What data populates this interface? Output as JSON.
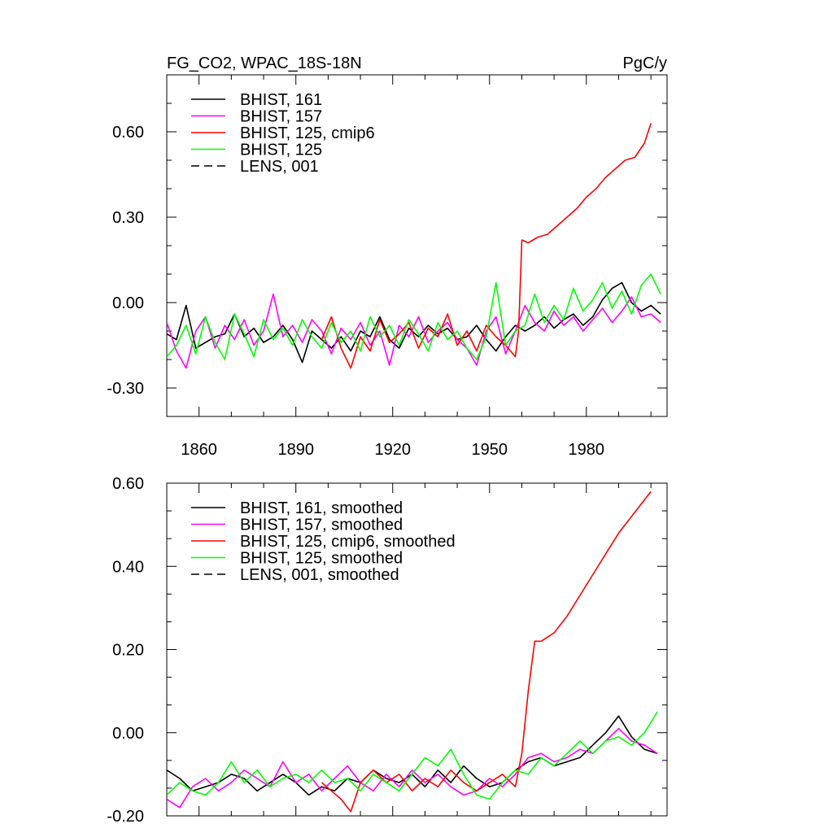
{
  "header": {
    "title": "FG_CO2, WPAC_18S-18N",
    "units": "PgC/y"
  },
  "colors": {
    "BHIST, 161": "#000000",
    "BHIST, 157": "#ff00ff",
    "BHIST, 125, cmip6": "#ff0000",
    "BHIST, 125": "#00ff00",
    "LENS, 001": "#000000"
  },
  "chart_data": [
    {
      "type": "line",
      "title": "FG_CO2, WPAC_18S-18N",
      "subtitle": "PgC/y",
      "xlim": [
        1850,
        2005
      ],
      "ylim": [
        -0.4,
        0.8
      ],
      "xticks": [
        1860,
        1890,
        1920,
        1950,
        1980
      ],
      "yticks": [
        -0.3,
        0.0,
        0.3,
        0.6
      ],
      "ytick_labels": [
        "-0.30",
        "0.00",
        "0.30",
        "0.60"
      ],
      "xtick_labels": [
        "1860",
        "1890",
        "1920",
        "1950",
        "1980"
      ],
      "legend_position": "top-left",
      "grid": false,
      "series": [
        {
          "name": "BHIST, 161",
          "color": "#000000",
          "dash": "solid",
          "x": [
            1850,
            1853,
            1856,
            1859,
            1862,
            1865,
            1868,
            1871,
            1874,
            1877,
            1880,
            1883,
            1886,
            1889,
            1892,
            1895,
            1898,
            1901,
            1904,
            1907,
            1910,
            1913,
            1916,
            1919,
            1922,
            1925,
            1928,
            1931,
            1934,
            1937,
            1940,
            1943,
            1946,
            1949,
            1952,
            1955,
            1958,
            1961,
            1964,
            1967,
            1970,
            1973,
            1976,
            1979,
            1982,
            1985,
            1988,
            1991,
            1994,
            1997,
            2000,
            2003
          ],
          "y": [
            -0.11,
            -0.13,
            -0.01,
            -0.16,
            -0.14,
            -0.12,
            -0.11,
            -0.04,
            -0.12,
            -0.09,
            -0.14,
            -0.12,
            -0.08,
            -0.13,
            -0.21,
            -0.1,
            -0.13,
            -0.16,
            -0.12,
            -0.17,
            -0.1,
            -0.12,
            -0.05,
            -0.13,
            -0.16,
            -0.09,
            -0.12,
            -0.08,
            -0.11,
            -0.09,
            -0.13,
            -0.12,
            -0.08,
            -0.13,
            -0.17,
            -0.12,
            -0.08,
            -0.1,
            -0.08,
            -0.05,
            -0.09,
            -0.06,
            -0.04,
            -0.08,
            -0.05,
            0.01,
            0.05,
            0.07,
            0.0,
            -0.03,
            -0.01,
            -0.04
          ]
        },
        {
          "name": "BHIST, 157",
          "color": "#ff00ff",
          "dash": "solid",
          "x": [
            1850,
            1853,
            1856,
            1859,
            1862,
            1865,
            1868,
            1871,
            1874,
            1877,
            1880,
            1883,
            1886,
            1889,
            1892,
            1895,
            1898,
            1901,
            1904,
            1907,
            1910,
            1913,
            1916,
            1919,
            1922,
            1925,
            1928,
            1931,
            1934,
            1937,
            1940,
            1943,
            1946,
            1949,
            1952,
            1955,
            1958,
            1961,
            1964,
            1967,
            1970,
            1973,
            1976,
            1979,
            1982,
            1985,
            1988,
            1991,
            1994,
            1997,
            2000,
            2003
          ],
          "y": [
            -0.07,
            -0.17,
            -0.23,
            -0.1,
            -0.05,
            -0.16,
            -0.08,
            -0.13,
            -0.06,
            -0.15,
            -0.1,
            0.03,
            -0.12,
            -0.08,
            -0.14,
            -0.06,
            -0.1,
            -0.18,
            -0.09,
            -0.13,
            -0.07,
            -0.15,
            -0.1,
            -0.22,
            -0.08,
            -0.12,
            -0.05,
            -0.14,
            -0.1,
            -0.07,
            -0.13,
            -0.16,
            -0.22,
            -0.1,
            -0.05,
            -0.18,
            -0.1,
            -0.01,
            -0.07,
            -0.1,
            -0.03,
            -0.08,
            -0.05,
            -0.1,
            -0.06,
            -0.02,
            -0.07,
            -0.03,
            0.02,
            -0.05,
            -0.04,
            -0.07
          ]
        },
        {
          "name": "BHIST, 125, cmip6",
          "color": "#ff0000",
          "dash": "solid",
          "x": [
            1898,
            1901,
            1904,
            1907,
            1910,
            1913,
            1916,
            1919,
            1922,
            1925,
            1928,
            1931,
            1934,
            1937,
            1940,
            1943,
            1946,
            1949,
            1952,
            1955,
            1958,
            1959,
            1960,
            1962,
            1965,
            1968,
            1971,
            1974,
            1977,
            1980,
            1983,
            1986,
            1989,
            1992,
            1995,
            1998,
            2000
          ],
          "y": [
            -0.13,
            -0.05,
            -0.16,
            -0.23,
            -0.12,
            -0.17,
            -0.06,
            -0.14,
            -0.11,
            -0.07,
            -0.16,
            -0.09,
            -0.12,
            -0.04,
            -0.15,
            -0.1,
            -0.17,
            -0.08,
            -0.12,
            -0.15,
            -0.19,
            -0.1,
            0.22,
            0.21,
            0.23,
            0.24,
            0.27,
            0.3,
            0.33,
            0.37,
            0.4,
            0.44,
            0.47,
            0.5,
            0.51,
            0.56,
            0.63
          ]
        },
        {
          "name": "BHIST, 125",
          "color": "#00ff00",
          "dash": "solid",
          "x": [
            1850,
            1853,
            1856,
            1859,
            1862,
            1865,
            1868,
            1871,
            1874,
            1877,
            1880,
            1883,
            1886,
            1889,
            1892,
            1895,
            1898,
            1901,
            1904,
            1907,
            1910,
            1913,
            1916,
            1919,
            1922,
            1925,
            1928,
            1931,
            1934,
            1937,
            1940,
            1943,
            1946,
            1949,
            1952,
            1955,
            1958,
            1961,
            1964,
            1967,
            1970,
            1973,
            1976,
            1979,
            1982,
            1985,
            1988,
            1991,
            1994,
            1997,
            2000,
            2003
          ],
          "y": [
            -0.19,
            -0.15,
            -0.08,
            -0.18,
            -0.05,
            -0.14,
            -0.2,
            -0.04,
            -0.11,
            -0.19,
            -0.06,
            -0.13,
            -0.09,
            -0.15,
            -0.06,
            -0.12,
            -0.16,
            -0.07,
            -0.14,
            -0.1,
            -0.17,
            -0.05,
            -0.12,
            -0.08,
            -0.15,
            -0.06,
            -0.11,
            -0.17,
            -0.07,
            -0.13,
            -0.1,
            -0.16,
            -0.2,
            -0.12,
            0.07,
            -0.15,
            -0.1,
            -0.08,
            0.03,
            -0.07,
            -0.01,
            -0.06,
            0.05,
            -0.03,
            0.01,
            0.07,
            -0.02,
            0.04,
            -0.04,
            0.06,
            0.1,
            0.03
          ]
        },
        {
          "name": "LENS, 001",
          "color": "#000000",
          "dash": "dashed",
          "x": [],
          "y": []
        }
      ]
    },
    {
      "type": "line",
      "title": "",
      "xlim": [
        1850,
        2005
      ],
      "ylim": [
        -0.2,
        0.6
      ],
      "xticks": [
        1860,
        1890,
        1920,
        1950,
        1980
      ],
      "yticks": [
        -0.2,
        0.0,
        0.2,
        0.4,
        0.6
      ],
      "ytick_labels": [
        "-0.20",
        "0.00",
        "0.20",
        "0.40",
        "0.60"
      ],
      "legend_position": "top-left",
      "grid": false,
      "series": [
        {
          "name": "BHIST, 161, smoothed",
          "color": "#000000",
          "dash": "solid",
          "x": [
            1850,
            1854,
            1858,
            1862,
            1866,
            1870,
            1874,
            1878,
            1882,
            1886,
            1890,
            1894,
            1898,
            1902,
            1906,
            1910,
            1914,
            1918,
            1922,
            1926,
            1930,
            1934,
            1938,
            1942,
            1946,
            1950,
            1954,
            1958,
            1962,
            1966,
            1970,
            1974,
            1978,
            1982,
            1986,
            1990,
            1994,
            1998,
            2002
          ],
          "y": [
            -0.09,
            -0.11,
            -0.14,
            -0.13,
            -0.12,
            -0.1,
            -0.11,
            -0.14,
            -0.12,
            -0.1,
            -0.12,
            -0.15,
            -0.13,
            -0.14,
            -0.11,
            -0.12,
            -0.09,
            -0.11,
            -0.12,
            -0.1,
            -0.13,
            -0.09,
            -0.12,
            -0.08,
            -0.11,
            -0.13,
            -0.12,
            -0.09,
            -0.07,
            -0.06,
            -0.08,
            -0.07,
            -0.06,
            -0.03,
            0.0,
            0.04,
            -0.01,
            -0.04,
            -0.05
          ]
        },
        {
          "name": "BHIST, 157, smoothed",
          "color": "#ff00ff",
          "dash": "solid",
          "x": [
            1850,
            1854,
            1858,
            1862,
            1866,
            1870,
            1874,
            1878,
            1882,
            1886,
            1890,
            1894,
            1898,
            1902,
            1906,
            1910,
            1914,
            1918,
            1922,
            1926,
            1930,
            1934,
            1938,
            1942,
            1946,
            1950,
            1954,
            1958,
            1962,
            1966,
            1970,
            1974,
            1978,
            1982,
            1986,
            1990,
            1994,
            1998,
            2002
          ],
          "y": [
            -0.16,
            -0.18,
            -0.13,
            -0.11,
            -0.14,
            -0.12,
            -0.09,
            -0.11,
            -0.13,
            -0.07,
            -0.12,
            -0.1,
            -0.14,
            -0.11,
            -0.08,
            -0.12,
            -0.14,
            -0.1,
            -0.13,
            -0.09,
            -0.12,
            -0.1,
            -0.13,
            -0.15,
            -0.14,
            -0.11,
            -0.13,
            -0.1,
            -0.06,
            -0.05,
            -0.07,
            -0.06,
            -0.04,
            -0.05,
            -0.02,
            0.01,
            -0.02,
            -0.03,
            -0.05
          ]
        },
        {
          "name": "BHIST, 125, cmip6, smoothed",
          "color": "#ff0000",
          "dash": "solid",
          "x": [
            1898,
            1901,
            1904,
            1907,
            1910,
            1914,
            1918,
            1922,
            1926,
            1930,
            1934,
            1938,
            1942,
            1946,
            1950,
            1954,
            1958,
            1960,
            1962,
            1964,
            1966,
            1970,
            1974,
            1978,
            1982,
            1986,
            1990,
            1994,
            1998,
            2000
          ],
          "y": [
            -0.12,
            -0.14,
            -0.16,
            -0.19,
            -0.12,
            -0.09,
            -0.12,
            -0.1,
            -0.14,
            -0.11,
            -0.13,
            -0.09,
            -0.12,
            -0.14,
            -0.12,
            -0.1,
            -0.13,
            -0.05,
            0.1,
            0.22,
            0.22,
            0.24,
            0.28,
            0.33,
            0.38,
            0.43,
            0.48,
            0.52,
            0.56,
            0.58
          ]
        },
        {
          "name": "BHIST, 125, smoothed",
          "color": "#00ff00",
          "dash": "solid",
          "x": [
            1850,
            1854,
            1858,
            1862,
            1866,
            1870,
            1874,
            1878,
            1882,
            1886,
            1890,
            1894,
            1898,
            1902,
            1906,
            1910,
            1914,
            1918,
            1922,
            1926,
            1930,
            1934,
            1938,
            1942,
            1946,
            1950,
            1954,
            1958,
            1962,
            1966,
            1970,
            1974,
            1978,
            1982,
            1986,
            1990,
            1994,
            1998,
            2002
          ],
          "y": [
            -0.15,
            -0.12,
            -0.14,
            -0.15,
            -0.12,
            -0.07,
            -0.12,
            -0.09,
            -0.13,
            -0.11,
            -0.1,
            -0.12,
            -0.09,
            -0.12,
            -0.11,
            -0.14,
            -0.1,
            -0.12,
            -0.14,
            -0.1,
            -0.06,
            -0.08,
            -0.04,
            -0.1,
            -0.15,
            -0.16,
            -0.12,
            -0.09,
            -0.1,
            -0.06,
            -0.08,
            -0.05,
            -0.02,
            -0.05,
            -0.02,
            -0.01,
            -0.03,
            0.0,
            0.05
          ]
        },
        {
          "name": "LENS, 001, smoothed",
          "color": "#000000",
          "dash": "dashed",
          "x": [],
          "y": []
        }
      ]
    }
  ]
}
